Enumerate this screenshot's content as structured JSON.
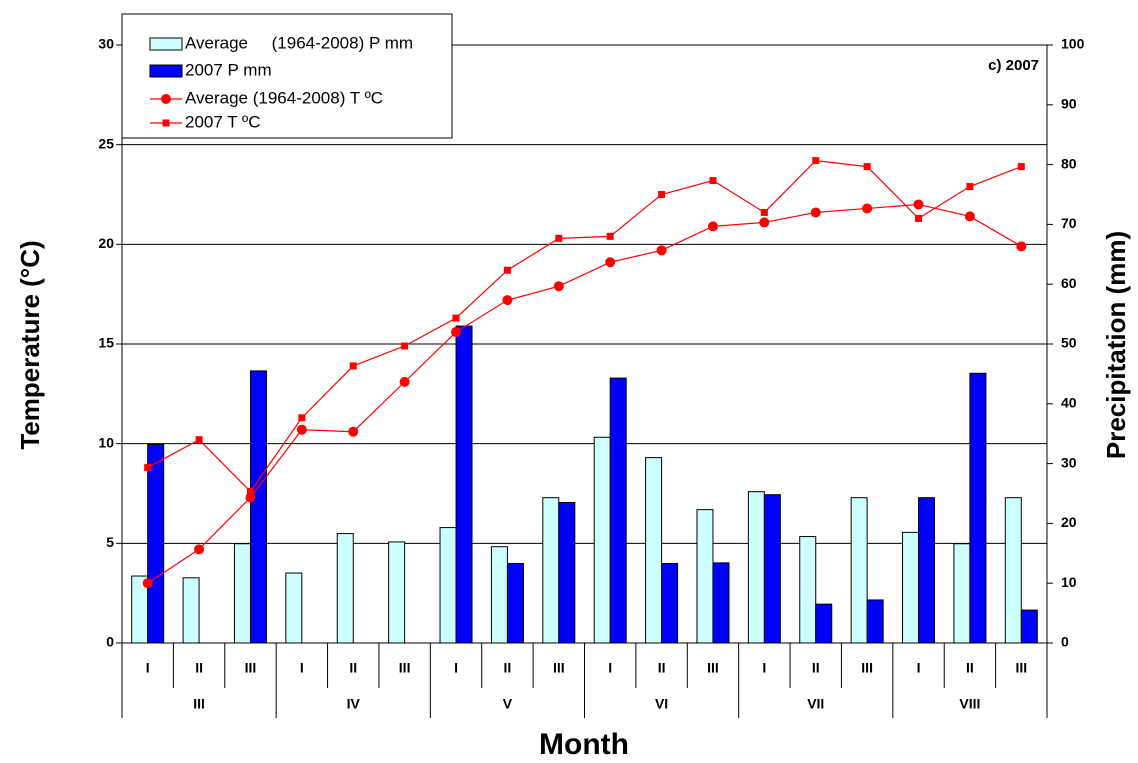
{
  "chart_data": {
    "type": "bar_line",
    "annotation": "c) 2007",
    "x_label": "Month",
    "y_label": "Temperature (°C)",
    "y2_label": "Precipitation (mm)",
    "categories": [
      "I",
      "II",
      "III",
      "I",
      "II",
      "III",
      "I",
      "II",
      "III",
      "I",
      "II",
      "III",
      "I",
      "II",
      "III",
      "I",
      "II",
      "III"
    ],
    "months": [
      "III",
      "IV",
      "V",
      "VI",
      "VII",
      "VIII"
    ],
    "ylim": [
      0,
      30
    ],
    "yticks": [
      0,
      5,
      10,
      15,
      20,
      25,
      30
    ],
    "y2lim": [
      0,
      100
    ],
    "y2ticks": [
      0,
      10,
      20,
      30,
      40,
      50,
      60,
      70,
      80,
      90,
      100
    ],
    "grid": true,
    "legend": "upper left",
    "series": [
      {
        "name": "Average     (1964-2008) P mm",
        "type": "bar",
        "axis": "y2",
        "color": "#ccffff",
        "values": [
          11.2,
          10.9,
          16.6,
          11.7,
          18.3,
          16.9,
          19.3,
          16.1,
          24.3,
          34.4,
          31.0,
          22.3,
          25.3,
          17.8,
          24.3,
          18.5,
          16.6,
          24.3
        ]
      },
      {
        "name": "2007 P mm",
        "type": "bar",
        "axis": "y2",
        "color": "#0000ff",
        "values": [
          33.2,
          0,
          45.5,
          0,
          0,
          0,
          53.0,
          13.3,
          23.5,
          44.3,
          13.3,
          13.4,
          24.8,
          6.5,
          7.2,
          24.3,
          45.1,
          5.5
        ]
      },
      {
        "name": "Average (1964-2008) T ºC",
        "type": "line",
        "marker": "circle",
        "color": "#ff0000",
        "values": [
          3.0,
          4.7,
          7.3,
          10.7,
          10.6,
          13.1,
          15.6,
          17.2,
          17.9,
          19.1,
          19.7,
          20.9,
          21.1,
          21.6,
          21.8,
          22.0,
          21.4,
          19.9
        ]
      },
      {
        "name": "2007 T ºC",
        "type": "line",
        "marker": "square",
        "color": "#ff0000",
        "values": [
          8.8,
          10.2,
          7.6,
          11.3,
          13.9,
          14.9,
          16.3,
          18.7,
          20.3,
          20.4,
          22.5,
          23.2,
          21.6,
          24.2,
          23.9,
          21.3,
          22.9,
          23.9
        ]
      }
    ]
  }
}
